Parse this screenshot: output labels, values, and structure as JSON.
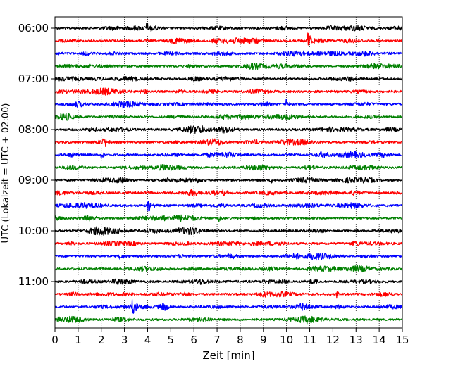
{
  "chart_data": {
    "type": "line",
    "title": "",
    "xlabel": "Zeit  [min]",
    "ylabel": "UTC (Lokalzeit = UTC + 02:00)",
    "xlim": [
      0,
      15
    ],
    "x_ticks": [
      "0",
      "1",
      "2",
      "3",
      "4",
      "5",
      "6",
      "7",
      "8",
      "9",
      "10",
      "11",
      "12",
      "13",
      "14",
      "15"
    ],
    "y_tick_labels": [
      "06:00",
      "07:00",
      "08:00",
      "09:00",
      "10:00",
      "11:00"
    ],
    "grid": "vertical-dotted",
    "trace_colors": [
      "#000000",
      "#ff0000",
      "#0000ff",
      "#008000"
    ],
    "series": [
      {
        "start": "06:00",
        "color": "#000000",
        "events": [
          {
            "t": 4.0,
            "amp": 8
          }
        ]
      },
      {
        "start": "06:15",
        "color": "#ff0000",
        "events": [
          {
            "t": 10.95,
            "amp": 12
          }
        ]
      },
      {
        "start": "06:30",
        "color": "#0000ff",
        "events": []
      },
      {
        "start": "06:45",
        "color": "#008000",
        "events": []
      },
      {
        "start": "07:00",
        "color": "#000000",
        "events": []
      },
      {
        "start": "07:15",
        "color": "#ff0000",
        "events": []
      },
      {
        "start": "07:30",
        "color": "#0000ff",
        "events": [
          {
            "t": 10.0,
            "amp": 6
          }
        ]
      },
      {
        "start": "07:45",
        "color": "#008000",
        "events": []
      },
      {
        "start": "08:00",
        "color": "#000000",
        "events": [
          {
            "t": 7.5,
            "amp": 5
          }
        ]
      },
      {
        "start": "08:15",
        "color": "#ff0000",
        "events": [
          {
            "t": 2.1,
            "amp": 14
          }
        ]
      },
      {
        "start": "08:30",
        "color": "#0000ff",
        "events": [
          {
            "t": 2.0,
            "amp": 6
          }
        ]
      },
      {
        "start": "08:45",
        "color": "#008000",
        "events": []
      },
      {
        "start": "09:00",
        "color": "#000000",
        "events": [
          {
            "t": 9.3,
            "amp": 5
          }
        ]
      },
      {
        "start": "09:15",
        "color": "#ff0000",
        "events": [
          {
            "t": 7.3,
            "amp": 5
          }
        ]
      },
      {
        "start": "09:30",
        "color": "#0000ff",
        "events": [
          {
            "t": 4.05,
            "amp": 10
          }
        ]
      },
      {
        "start": "09:45",
        "color": "#008000",
        "events": [
          {
            "t": 7.1,
            "amp": 5
          }
        ]
      },
      {
        "start": "10:00",
        "color": "#000000",
        "events": [
          {
            "t": 5.2,
            "amp": 5
          }
        ]
      },
      {
        "start": "10:15",
        "color": "#ff0000",
        "events": []
      },
      {
        "start": "10:30",
        "color": "#0000ff",
        "events": [
          {
            "t": 2.8,
            "amp": 5
          }
        ]
      },
      {
        "start": "10:45",
        "color": "#008000",
        "events": []
      },
      {
        "start": "11:00",
        "color": "#000000",
        "events": []
      },
      {
        "start": "11:15",
        "color": "#ff0000",
        "events": [
          {
            "t": 12.2,
            "amp": 5
          }
        ]
      },
      {
        "start": "11:30",
        "color": "#0000ff",
        "events": [
          {
            "t": 3.35,
            "amp": 11
          }
        ]
      },
      {
        "start": "11:45",
        "color": "#008000",
        "events": [
          {
            "t": 10.9,
            "amp": 4
          }
        ]
      }
    ]
  }
}
